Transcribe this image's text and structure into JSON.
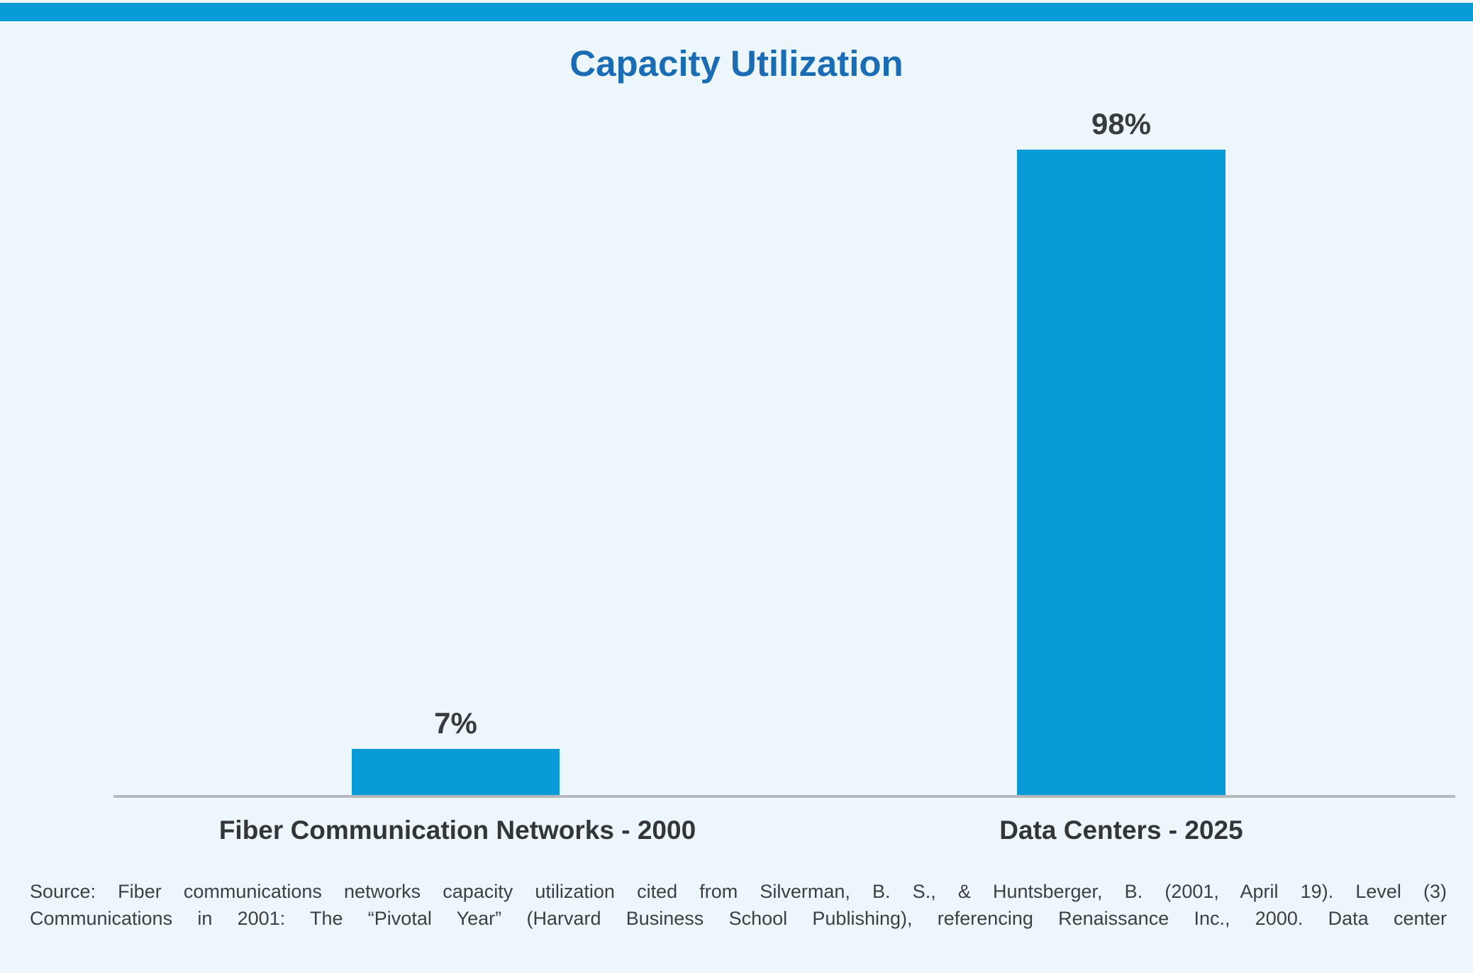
{
  "page": {
    "title": "Capacity Utilization"
  },
  "colors": {
    "accent_blue": "#089bd8",
    "title_blue": "#1a6cb5",
    "background": "#edf6fa",
    "axis_gray": "#b5b9bc",
    "text_dark": "#383c3f"
  },
  "chart_data": {
    "type": "bar",
    "title": "Capacity Utilization",
    "categories": [
      "Fiber Communication Networks - 2000",
      "Data Centers - 2025"
    ],
    "values": [
      7,
      98
    ],
    "value_labels": [
      "7%",
      "98%"
    ],
    "unit": "%",
    "ylim": [
      0,
      100
    ],
    "grid": false,
    "legend_position": "none",
    "bar_color": "#089bd8",
    "orientation": "vertical"
  },
  "source": {
    "lines": [
      "Source: Fiber communications networks capacity utilization cited from Silverman, B. S., & Huntsberger, B. (2001, April 19). Level (3)",
      "Communications in 2001: The “Pivotal Year” (Harvard Business School Publishing), referencing Renaissance Inc., 2000. Data center"
    ]
  }
}
